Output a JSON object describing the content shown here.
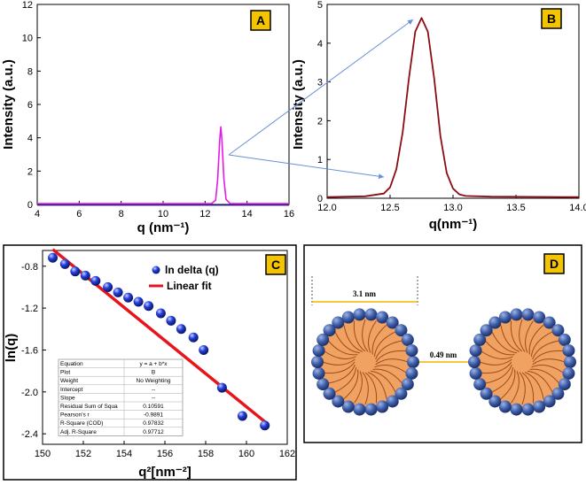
{
  "chart_data": [
    {
      "id": "A",
      "type": "line",
      "panel_label": "A",
      "xlabel": "q (nm⁻¹)",
      "ylabel": "Intensity (a.u.)",
      "xlim": [
        4,
        16
      ],
      "ylim": [
        0,
        12
      ],
      "xticks": [
        "4",
        "6",
        "8",
        "10",
        "12",
        "14",
        "16"
      ],
      "yticks": [
        "0",
        "2",
        "4",
        "6",
        "8",
        "10",
        "12"
      ],
      "series": [
        {
          "name": "signal",
          "color": "#e619e6",
          "x": [
            4,
            12.3,
            12.5,
            12.6,
            12.7,
            12.75,
            12.8,
            12.9,
            13.0,
            13.2,
            16
          ],
          "y": [
            0.05,
            0.05,
            0.25,
            1.5,
            3.9,
            4.65,
            3.9,
            1.5,
            0.3,
            0.05,
            0.05
          ]
        }
      ]
    },
    {
      "id": "B",
      "type": "line",
      "panel_label": "B",
      "xlabel": "q(nm⁻¹)",
      "ylabel": "Intensity (a.u.)",
      "xlim": [
        12.0,
        14.0
      ],
      "ylim": [
        0,
        5
      ],
      "xticks": [
        "12.0",
        "12.5",
        "13.0",
        "13.5",
        "14.0"
      ],
      "yticks": [
        "0",
        "1",
        "2",
        "3",
        "4",
        "5"
      ],
      "series": [
        {
          "name": "peak",
          "color": "#8b0d14",
          "x": [
            12.0,
            12.3,
            12.45,
            12.5,
            12.55,
            12.6,
            12.65,
            12.7,
            12.75,
            12.8,
            12.85,
            12.9,
            12.95,
            13.0,
            13.05,
            13.1,
            13.3,
            14.0
          ],
          "y": [
            0.03,
            0.05,
            0.12,
            0.28,
            0.75,
            1.7,
            3.1,
            4.3,
            4.65,
            4.3,
            3.1,
            1.6,
            0.65,
            0.25,
            0.1,
            0.06,
            0.04,
            0.03
          ]
        }
      ]
    },
    {
      "id": "C",
      "type": "scatter",
      "panel_label": "C",
      "xlabel": "q²[nm⁻²]",
      "ylabel": "ln(q)",
      "xlim": [
        150,
        162
      ],
      "ylim": [
        -2.5,
        -0.65
      ],
      "xticks": [
        "150",
        "152",
        "154",
        "156",
        "158",
        "160",
        "162"
      ],
      "yticks": [
        "-0.8",
        "-1.2",
        "-1.6",
        "-2.0",
        "-2.4"
      ],
      "legend": [
        "ln delta (q)",
        "Linear fit"
      ],
      "series": [
        {
          "name": "ln delta (q)",
          "color": "#1a2fd6",
          "x": [
            150.5,
            151.1,
            151.6,
            152.1,
            152.6,
            153.2,
            153.7,
            154.2,
            154.7,
            155.2,
            155.8,
            156.3,
            156.8,
            157.4,
            157.9,
            158.8,
            159.8,
            160.9
          ],
          "y": [
            -0.72,
            -0.78,
            -0.85,
            -0.89,
            -0.94,
            -1.0,
            -1.05,
            -1.1,
            -1.14,
            -1.18,
            -1.25,
            -1.32,
            -1.4,
            -1.48,
            -1.6,
            -1.96,
            -2.23,
            -2.32
          ]
        },
        {
          "name": "Linear fit",
          "color": "#e8141b",
          "x": [
            150.5,
            161.0
          ],
          "y": [
            -0.64,
            -2.3
          ]
        }
      ],
      "fit_table": [
        [
          "Equation",
          "y = a + b*x"
        ],
        [
          "Plot",
          "B"
        ],
        [
          "Weight",
          "No Weighting"
        ],
        [
          "Intercept",
          "--"
        ],
        [
          "Slope",
          "--"
        ],
        [
          "Residual Sum of Squa",
          "0.10591"
        ],
        [
          "Pearson's r",
          "-0.9891"
        ],
        [
          "R-Square (COD)",
          "0.97832"
        ],
        [
          "Adj. R-Square",
          "0.97712"
        ]
      ]
    }
  ],
  "diagram": {
    "panel_label": "D",
    "diameter_label": "3.1 nm",
    "gap_label": "0.49 nm"
  },
  "colors": {
    "micelle_core": "#f0a262",
    "micelle_head": "#4a66a8",
    "chain": "#a04a1a",
    "badge_fill": "#f5c400",
    "measure_line": "#f4b400",
    "arrow": "#6a8fd6"
  }
}
